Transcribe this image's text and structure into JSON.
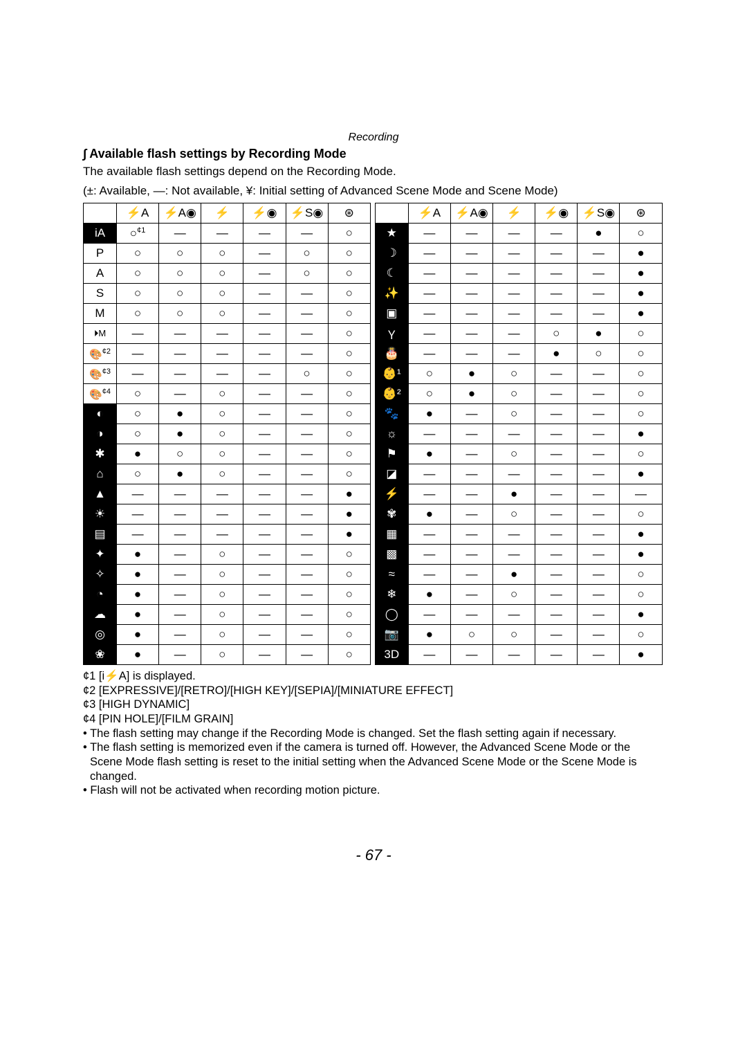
{
  "page": {
    "section_header": "Recording",
    "subtitle_prefix": "∫",
    "subtitle": "Available flash settings by Recording Mode",
    "intro_line1": "The available flash settings depend on the Recording Mode.",
    "intro_line2": "(±: Available, —: Not available, ¥: Initial setting of Advanced Scene Mode and Scene Mode)",
    "page_number": "- 67 -"
  },
  "symbols": {
    "available": "±",
    "not_available": "—",
    "initial": "¥",
    "circle_open": "○",
    "circle_filled": "●",
    "dash": "—"
  },
  "col_headers": [
    "‡",
    "",
    "",
    "",
    "",
    ""
  ],
  "header_icons": [
    "⚡A",
    "⚡A◉",
    "⚡",
    "⚡◉",
    "⚡S◉",
    "⊛"
  ],
  "left_table": {
    "rows": [
      {
        "label": "iA",
        "label_style": "black",
        "cells": [
          "○*1",
          "—",
          "—",
          "—",
          "—",
          "○"
        ]
      },
      {
        "label": "P",
        "label_style": "white",
        "cells": [
          "○",
          "○",
          "○",
          "—",
          "○",
          "○"
        ]
      },
      {
        "label": "A",
        "label_style": "white",
        "cells": [
          "○",
          "○",
          "○",
          "—",
          "○",
          "○"
        ]
      },
      {
        "label": "S",
        "label_style": "white",
        "cells": [
          "○",
          "○",
          "○",
          "—",
          "—",
          "○"
        ]
      },
      {
        "label": "M",
        "label_style": "white",
        "cells": [
          "○",
          "○",
          "○",
          "—",
          "—",
          "○"
        ]
      },
      {
        "label": "⏵M",
        "label_style": "white-small",
        "cells": [
          "—",
          "—",
          "—",
          "—",
          "—",
          "○"
        ]
      },
      {
        "label": "🎨*2",
        "label_style": "white-icon",
        "cells": [
          "—",
          "—",
          "—",
          "—",
          "—",
          "○"
        ]
      },
      {
        "label": "🎨*3",
        "label_style": "white-icon",
        "cells": [
          "—",
          "—",
          "—",
          "—",
          "○",
          "○"
        ]
      },
      {
        "label": "🎨*4",
        "label_style": "white-icon",
        "cells": [
          "○",
          "—",
          "○",
          "—",
          "—",
          "○"
        ]
      },
      {
        "label": "◐",
        "label_style": "black",
        "cells": [
          "○",
          "●",
          "○",
          "—",
          "—",
          "○"
        ]
      },
      {
        "label": "◑",
        "label_style": "black",
        "cells": [
          "○",
          "●",
          "○",
          "—",
          "—",
          "○"
        ]
      },
      {
        "label": "✱",
        "label_style": "black",
        "cells": [
          "●",
          "○",
          "○",
          "—",
          "—",
          "○"
        ]
      },
      {
        "label": "⌂",
        "label_style": "black",
        "cells": [
          "○",
          "●",
          "○",
          "—",
          "—",
          "○"
        ]
      },
      {
        "label": "▲",
        "label_style": "black",
        "cells": [
          "—",
          "—",
          "—",
          "—",
          "—",
          "●"
        ]
      },
      {
        "label": "☀",
        "label_style": "black",
        "cells": [
          "—",
          "—",
          "—",
          "—",
          "—",
          "●"
        ]
      },
      {
        "label": "▤",
        "label_style": "black",
        "cells": [
          "—",
          "—",
          "—",
          "—",
          "—",
          "●"
        ]
      },
      {
        "label": "✦",
        "label_style": "black",
        "cells": [
          "●",
          "—",
          "○",
          "—",
          "—",
          "○"
        ]
      },
      {
        "label": "✧",
        "label_style": "black",
        "cells": [
          "●",
          "—",
          "○",
          "—",
          "—",
          "○"
        ]
      },
      {
        "label": "◔",
        "label_style": "black",
        "cells": [
          "●",
          "—",
          "○",
          "—",
          "—",
          "○"
        ]
      },
      {
        "label": "☁",
        "label_style": "black",
        "cells": [
          "●",
          "—",
          "○",
          "—",
          "—",
          "○"
        ]
      },
      {
        "label": "◎",
        "label_style": "black",
        "cells": [
          "●",
          "—",
          "○",
          "—",
          "—",
          "○"
        ]
      },
      {
        "label": "❀",
        "label_style": "black",
        "cells": [
          "●",
          "—",
          "○",
          "—",
          "—",
          "○"
        ]
      }
    ]
  },
  "right_table": {
    "rows": [
      {
        "label": "★",
        "label_style": "black",
        "cells": [
          "—",
          "—",
          "—",
          "—",
          "●",
          "○"
        ]
      },
      {
        "label": "☽",
        "label_style": "black",
        "cells": [
          "—",
          "—",
          "—",
          "—",
          "—",
          "●"
        ]
      },
      {
        "label": "☾",
        "label_style": "black",
        "cells": [
          "—",
          "—",
          "—",
          "—",
          "—",
          "●"
        ]
      },
      {
        "label": "✨",
        "label_style": "black",
        "cells": [
          "—",
          "—",
          "—",
          "—",
          "—",
          "●"
        ]
      },
      {
        "label": "▣",
        "label_style": "black",
        "cells": [
          "—",
          "—",
          "—",
          "—",
          "—",
          "●"
        ]
      },
      {
        "label": "Ｙ",
        "label_style": "black",
        "cells": [
          "—",
          "—",
          "—",
          "○",
          "●",
          "○"
        ]
      },
      {
        "label": "🎂",
        "label_style": "black",
        "cells": [
          "—",
          "—",
          "—",
          "●",
          "○",
          "○"
        ]
      },
      {
        "label": "👶¹",
        "label_style": "black",
        "cells": [
          "○",
          "●",
          "○",
          "—",
          "—",
          "○"
        ]
      },
      {
        "label": "👶²",
        "label_style": "black",
        "cells": [
          "○",
          "●",
          "○",
          "—",
          "—",
          "○"
        ]
      },
      {
        "label": "🐾",
        "label_style": "black",
        "cells": [
          "●",
          "—",
          "○",
          "—",
          "—",
          "○"
        ]
      },
      {
        "label": "☼",
        "label_style": "black",
        "cells": [
          "—",
          "—",
          "—",
          "—",
          "—",
          "●"
        ]
      },
      {
        "label": "⚑",
        "label_style": "black",
        "cells": [
          "●",
          "—",
          "○",
          "—",
          "—",
          "○"
        ]
      },
      {
        "label": "◪",
        "label_style": "black",
        "cells": [
          "—",
          "—",
          "—",
          "—",
          "—",
          "●"
        ]
      },
      {
        "label": "⚡",
        "label_style": "black",
        "cells": [
          "—",
          "—",
          "●",
          "—",
          "—",
          "—"
        ]
      },
      {
        "label": "✾",
        "label_style": "black",
        "cells": [
          "●",
          "—",
          "○",
          "—",
          "—",
          "○"
        ]
      },
      {
        "label": "▦",
        "label_style": "black",
        "cells": [
          "—",
          "—",
          "—",
          "—",
          "—",
          "●"
        ]
      },
      {
        "label": "▩",
        "label_style": "black",
        "cells": [
          "—",
          "—",
          "—",
          "—",
          "—",
          "●"
        ]
      },
      {
        "label": "≈",
        "label_style": "black",
        "cells": [
          "—",
          "—",
          "●",
          "—",
          "—",
          "○"
        ]
      },
      {
        "label": "❄",
        "label_style": "black",
        "cells": [
          "●",
          "—",
          "○",
          "—",
          "—",
          "○"
        ]
      },
      {
        "label": "◯",
        "label_style": "black",
        "cells": [
          "—",
          "—",
          "—",
          "—",
          "—",
          "●"
        ]
      },
      {
        "label": "📷",
        "label_style": "black",
        "cells": [
          "●",
          "○",
          "○",
          "—",
          "—",
          "○"
        ]
      },
      {
        "label": "3D",
        "label_style": "black",
        "cells": [
          "—",
          "—",
          "—",
          "—",
          "—",
          "●"
        ]
      }
    ]
  },
  "footnotes": {
    "f1_prefix": "¢1 [",
    "f1_icon": "i⚡A",
    "f1_suffix": "] is displayed.",
    "f2": "¢2 [EXPRESSIVE]/[RETRO]/[HIGH KEY]/[SEPIA]/[MINIATURE EFFECT]",
    "f3": "¢3 [HIGH DYNAMIC]",
    "f4": "¢4 [PIN HOLE]/[FILM GRAIN]",
    "b1": "The flash setting may change if the Recording Mode is changed. Set the flash setting again if necessary.",
    "b2": "The flash setting is memorized even if the camera is turned off. However, the Advanced Scene Mode or the Scene Mode flash setting is reset to the initial setting when the Advanced Scene Mode or the Scene Mode is changed.",
    "b3": "Flash will not be activated when recording motion picture."
  }
}
